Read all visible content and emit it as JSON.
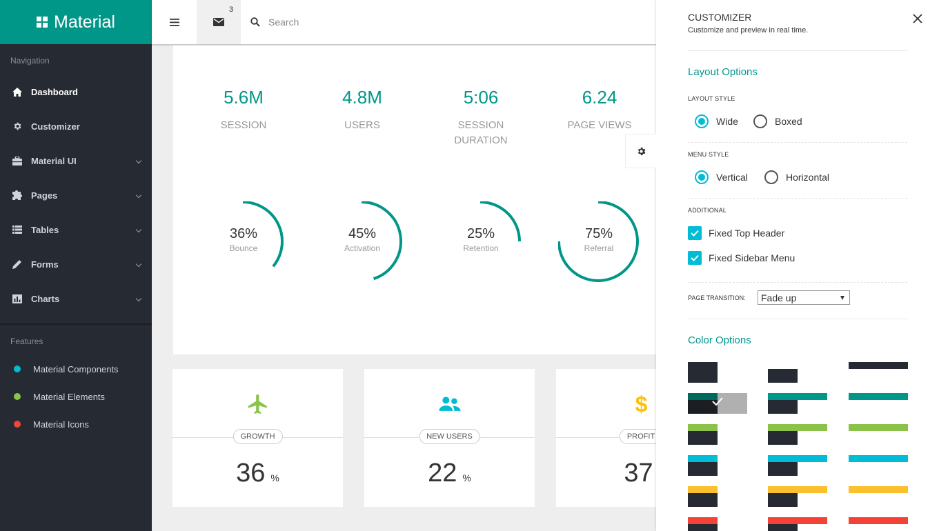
{
  "brand": {
    "name": "Material"
  },
  "sidebar": {
    "nav_title": "Navigation",
    "items": [
      {
        "label": "Dashboard",
        "icon": "home-icon"
      },
      {
        "label": "Customizer",
        "icon": "gear-icon"
      },
      {
        "label": "Material UI",
        "icon": "briefcase-icon"
      },
      {
        "label": "Pages",
        "icon": "puzzle-icon"
      },
      {
        "label": "Tables",
        "icon": "list-icon"
      },
      {
        "label": "Forms",
        "icon": "pencil-icon"
      },
      {
        "label": "Charts",
        "icon": "chart-icon"
      }
    ],
    "features_title": "Features",
    "features": [
      {
        "label": "Material Components",
        "color": "#00bcd4"
      },
      {
        "label": "Material Elements",
        "color": "#8bc34a"
      },
      {
        "label": "Material Icons",
        "color": "#f44336"
      }
    ]
  },
  "header": {
    "mail_count": "3",
    "search_placeholder": "Search"
  },
  "stats": [
    {
      "value": "5.6M",
      "label": "Session"
    },
    {
      "value": "4.8M",
      "label": "Users"
    },
    {
      "value": "5:06",
      "label": "Session Duration"
    },
    {
      "value": "6.24",
      "label": "Page Views"
    }
  ],
  "gauges": [
    {
      "percent": "36%",
      "label": "Bounce",
      "value": 0.36
    },
    {
      "percent": "45%",
      "label": "Activation",
      "value": 0.45
    },
    {
      "percent": "25%",
      "label": "Retention",
      "value": 0.25
    },
    {
      "percent": "75%",
      "label": "Referral",
      "value": 0.75
    }
  ],
  "kpis": [
    {
      "tag": "GROWTH",
      "value": "36",
      "unit": "%",
      "icon": "airplane-icon",
      "color": "#8bc34a"
    },
    {
      "tag": "NEW USERS",
      "value": "22",
      "unit": "%",
      "icon": "users-icon",
      "color": "#00bcd4"
    },
    {
      "tag": "PROFIT",
      "value": "37",
      "unit": "",
      "icon": "dollar-icon",
      "color": "#ffc107"
    }
  ],
  "customizer": {
    "title": "CUSTOMIZER",
    "subtitle": "Customize and preview in real time.",
    "layout_options": "Layout Options",
    "layout_style": "Layout Style",
    "layout_wide": "Wide",
    "layout_boxed": "Boxed",
    "menu_style": "Menu Style",
    "menu_vertical": "Vertical",
    "menu_horizontal": "Horizontal",
    "additional": "Additional",
    "fixed_top_header": "Fixed Top Header",
    "fixed_sidebar_menu": "Fixed Sidebar Menu",
    "page_transition": "Page Transition:",
    "page_transition_value": "Fade up",
    "color_options": "Color Options",
    "accent_colors": [
      "#262b33",
      "#009688",
      "#8bc34a",
      "#00bcd4",
      "#fbc02d",
      "#f44336"
    ]
  }
}
